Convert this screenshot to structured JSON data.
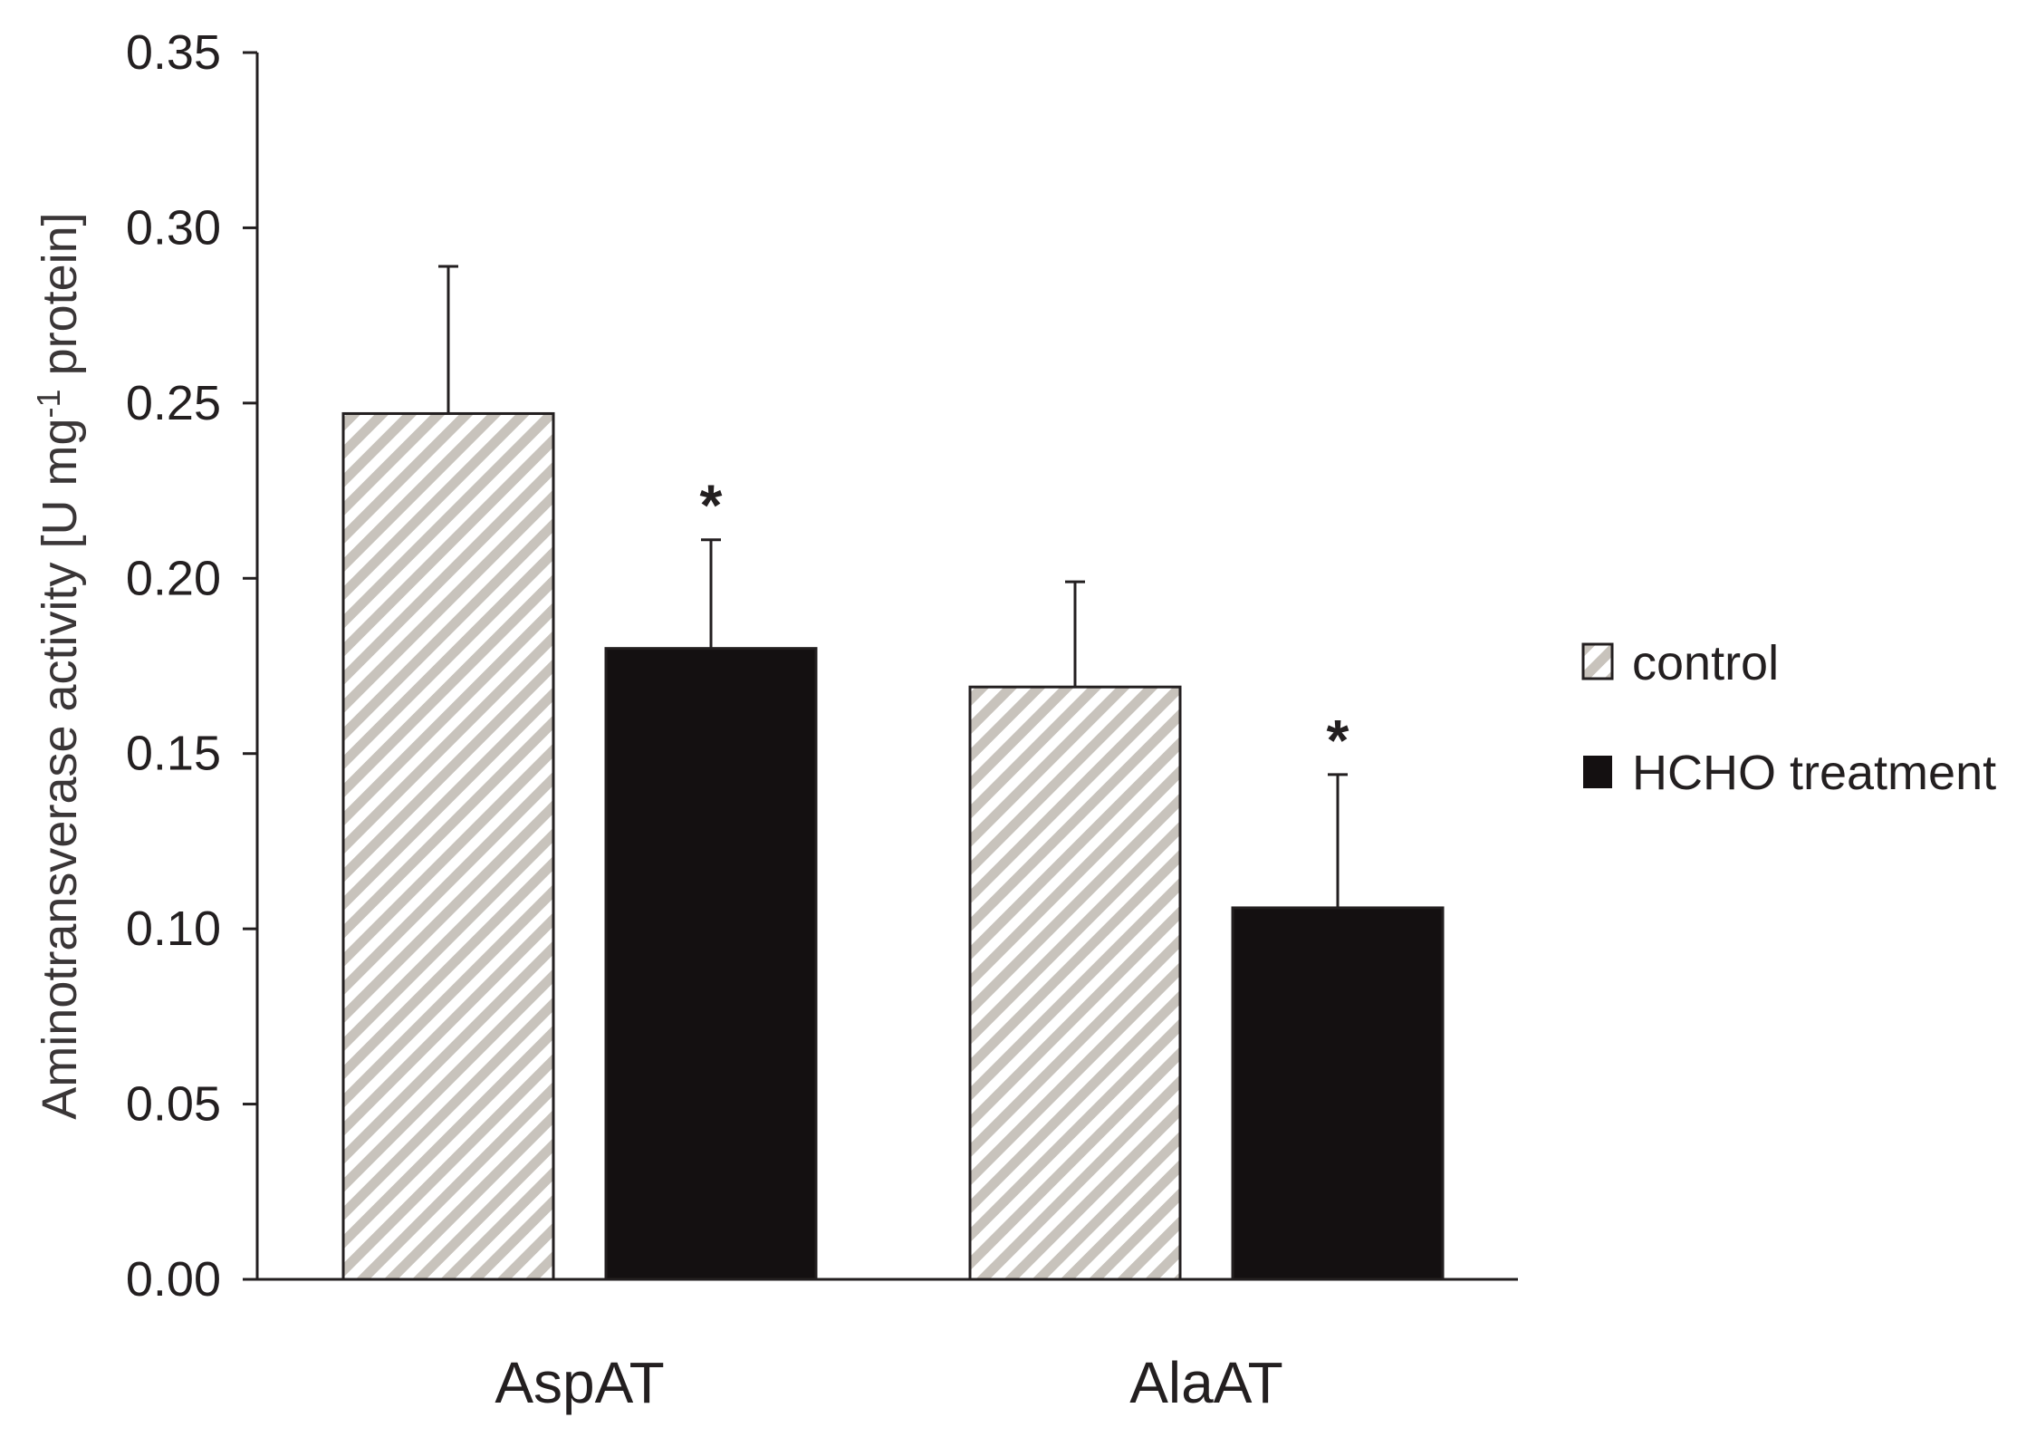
{
  "chart_data": {
    "type": "bar",
    "categories": [
      "AspAT",
      "AlaAT"
    ],
    "series": [
      {
        "name": "control",
        "values": [
          0.247,
          0.169
        ],
        "errors": [
          0.042,
          0.03
        ],
        "significance": [
          "",
          ""
        ],
        "fill": "hatch",
        "color": "#c8c3bc"
      },
      {
        "name": "HCHO treatment",
        "values": [
          0.18,
          0.106
        ],
        "errors": [
          0.031,
          0.038
        ],
        "significance": [
          "*",
          "*"
        ],
        "fill": "solid",
        "color": "#141011"
      }
    ],
    "ylabel_main": "Aminotransverase activity [U mg",
    "ylabel_sup": "-1",
    "ylabel_tail": " protein]",
    "xlabel": "",
    "ylim": [
      0,
      0.35
    ],
    "yticks": [
      "0.00",
      "0.05",
      "0.10",
      "0.15",
      "0.20",
      "0.25",
      "0.30",
      "0.35"
    ],
    "grid": false,
    "legend_position": "right"
  }
}
